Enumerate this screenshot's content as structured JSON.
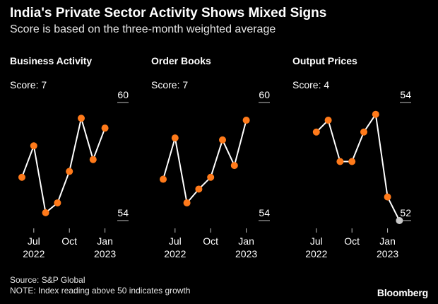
{
  "header": {
    "title": "India's Private Sector Activity Shows Mixed Signs",
    "subtitle": "Score is based on the three-month weighted average"
  },
  "footer": {
    "source": "Source: S&P Global",
    "note": "NOTE: Index reading above 50 indicates growth",
    "brand": "Bloomberg"
  },
  "colors": {
    "background": "#000000",
    "line": "#ffffff",
    "point": "#ff7a1a",
    "latest_point": "#c8c8c8",
    "text": "#ffffff"
  },
  "chart_data": [
    {
      "type": "line",
      "title": "Business Activity",
      "score_label": "Score: 7",
      "x": [
        "2022-06",
        "2022-07",
        "2022-08",
        "2022-09",
        "2022-10",
        "2022-11",
        "2022-12",
        "2023-01",
        "2023-02"
      ],
      "values": [
        56.2,
        57.8,
        54.4,
        54.9,
        56.5,
        59.2,
        57.1,
        58.7,
        null
      ],
      "ylim": [
        54,
        60
      ],
      "y_ticks": [
        "60",
        "54"
      ],
      "x_ticks": [
        {
          "x": "2022-07",
          "label": "Jul",
          "sublabel": "2022"
        },
        {
          "x": "2022-10",
          "label": "Oct",
          "sublabel": ""
        },
        {
          "x": "2023-01",
          "label": "Jan",
          "sublabel": "2023"
        }
      ],
      "grid": false
    },
    {
      "type": "line",
      "title": "Order Books",
      "score_label": "Score: 7",
      "x": [
        "2022-06",
        "2022-07",
        "2022-08",
        "2022-09",
        "2022-10",
        "2022-11",
        "2022-12",
        "2023-01",
        "2023-02"
      ],
      "values": [
        56.1,
        58.2,
        54.9,
        55.6,
        56.2,
        58.1,
        56.8,
        59.1,
        null
      ],
      "ylim": [
        54,
        60
      ],
      "y_ticks": [
        "60",
        "54"
      ],
      "x_ticks": [
        {
          "x": "2022-07",
          "label": "Jul",
          "sublabel": "2022"
        },
        {
          "x": "2022-10",
          "label": "Oct",
          "sublabel": ""
        },
        {
          "x": "2023-01",
          "label": "Jan",
          "sublabel": "2023"
        }
      ],
      "grid": false
    },
    {
      "type": "line",
      "title": "Output Prices",
      "score_label": "Score: 4",
      "x": [
        "2022-06",
        "2022-07",
        "2022-08",
        "2022-09",
        "2022-10",
        "2022-11",
        "2022-12",
        "2023-01",
        "2023-02"
      ],
      "values": [
        null,
        53.5,
        53.7,
        53.0,
        53.0,
        53.5,
        53.8,
        52.4,
        52.0
      ],
      "highlight_last": true,
      "ylim": [
        52,
        54
      ],
      "y_ticks": [
        "54",
        "52"
      ],
      "x_ticks": [
        {
          "x": "2022-07",
          "label": "Jul",
          "sublabel": "2022"
        },
        {
          "x": "2022-10",
          "label": "Oct",
          "sublabel": ""
        },
        {
          "x": "2023-01",
          "label": "Jan",
          "sublabel": "2023"
        }
      ],
      "grid": false
    }
  ]
}
